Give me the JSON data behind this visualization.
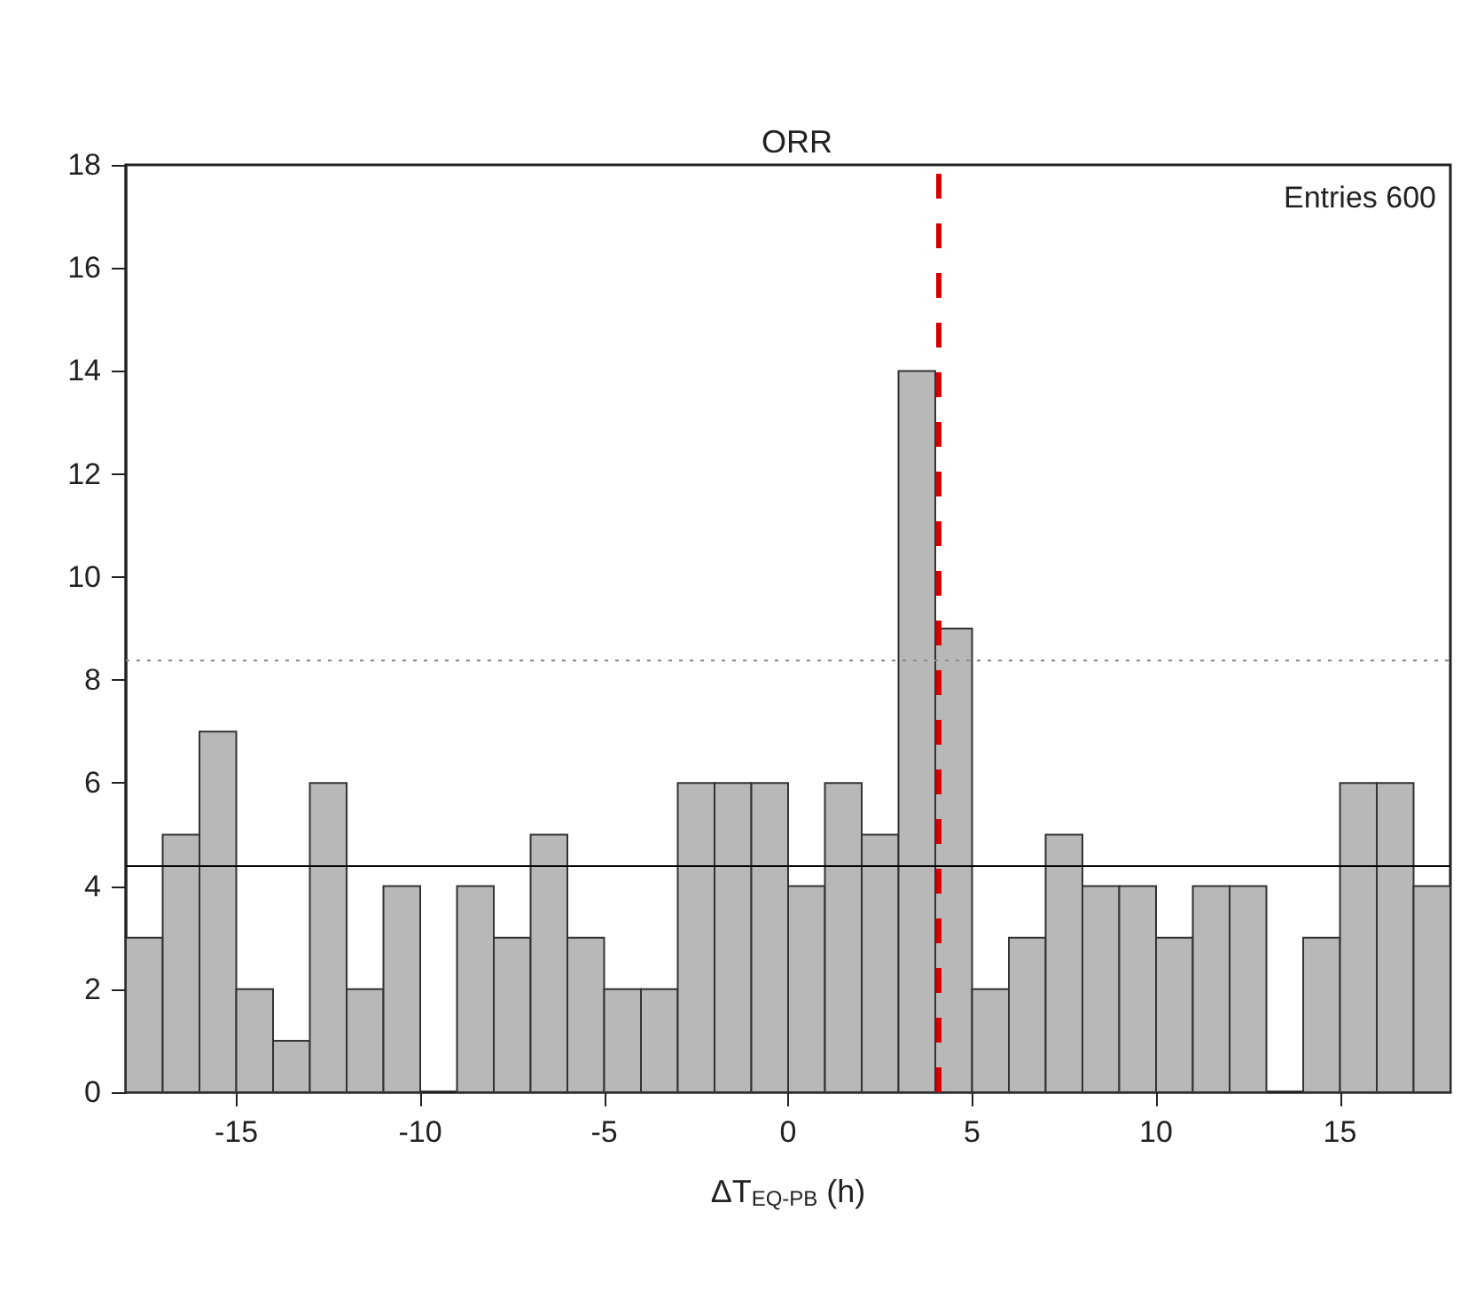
{
  "chart_data": {
    "type": "histogram",
    "title": "ORR",
    "xlabel": "ΔT$_{EQ-PB}$ (h)",
    "bins": [
      -18,
      -17,
      -16,
      -15,
      -14,
      -13,
      -12,
      -11,
      -10,
      -9,
      -8,
      -7,
      -6,
      -5,
      -4,
      -3,
      -2,
      -1,
      0,
      1,
      2,
      3,
      4,
      5,
      6,
      7,
      8,
      9,
      10,
      11,
      12,
      13,
      14,
      15,
      16,
      17,
      18
    ],
    "values": [
      3,
      5,
      7,
      2,
      1,
      6,
      2,
      4,
      0,
      4,
      3,
      5,
      3,
      2,
      2,
      6,
      6,
      6,
      4,
      6,
      5,
      14,
      9,
      2,
      3,
      5,
      4,
      4,
      3,
      4,
      4,
      0,
      3,
      6,
      6,
      4
    ],
    "color": "#b8b8b8",
    "xlim": [
      -18,
      18
    ],
    "xticks": [
      -15,
      -10,
      -5,
      0,
      5,
      10,
      15
    ],
    "ylim": [
      0,
      18
    ],
    "yticks": [
      0,
      2,
      4,
      6,
      8,
      10,
      12,
      14,
      16,
      18
    ],
    "ref_lines": [
      {
        "axis": "y",
        "value": 4.4,
        "color": "#000000",
        "line_style": "solid"
      },
      {
        "axis": "y",
        "value": 8.4,
        "color": "#888888",
        "line_style": "dotted"
      },
      {
        "axis": "x",
        "value": 4.1,
        "color": "#d40000",
        "line_style": "dashed"
      }
    ],
    "annotations": [
      "Entries 600"
    ],
    "grid": false,
    "legend": false
  }
}
